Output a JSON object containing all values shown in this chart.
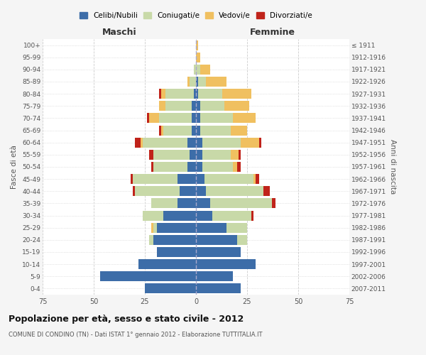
{
  "age_groups": [
    "0-4",
    "5-9",
    "10-14",
    "15-19",
    "20-24",
    "25-29",
    "30-34",
    "35-39",
    "40-44",
    "45-49",
    "50-54",
    "55-59",
    "60-64",
    "65-69",
    "70-74",
    "75-79",
    "80-84",
    "85-89",
    "90-94",
    "95-99",
    "100+"
  ],
  "birth_years": [
    "2007-2011",
    "2002-2006",
    "1997-2001",
    "1992-1996",
    "1987-1991",
    "1982-1986",
    "1977-1981",
    "1972-1976",
    "1967-1971",
    "1962-1966",
    "1957-1961",
    "1952-1956",
    "1947-1951",
    "1942-1946",
    "1937-1941",
    "1932-1936",
    "1927-1931",
    "1922-1926",
    "1917-1921",
    "1912-1916",
    "≤ 1911"
  ],
  "maschi": {
    "celibe": [
      25,
      47,
      28,
      19,
      21,
      19,
      16,
      9,
      8,
      9,
      4,
      3,
      4,
      2,
      2,
      2,
      1,
      0,
      0,
      0,
      0
    ],
    "coniugato": [
      0,
      0,
      0,
      0,
      2,
      2,
      10,
      13,
      22,
      22,
      17,
      18,
      22,
      14,
      16,
      13,
      14,
      3,
      1,
      0,
      0
    ],
    "vedovo": [
      0,
      0,
      0,
      0,
      0,
      1,
      0,
      0,
      0,
      0,
      0,
      0,
      1,
      1,
      5,
      3,
      2,
      1,
      0,
      0,
      0
    ],
    "divorziato": [
      0,
      0,
      0,
      0,
      0,
      0,
      0,
      0,
      1,
      1,
      1,
      2,
      3,
      1,
      1,
      0,
      1,
      0,
      0,
      0,
      0
    ]
  },
  "femmine": {
    "nubile": [
      22,
      18,
      29,
      22,
      20,
      15,
      8,
      7,
      5,
      4,
      3,
      3,
      3,
      2,
      2,
      2,
      1,
      1,
      0,
      0,
      0
    ],
    "coniugata": [
      0,
      0,
      0,
      0,
      5,
      10,
      19,
      30,
      28,
      24,
      15,
      14,
      19,
      15,
      16,
      12,
      12,
      4,
      2,
      0,
      0
    ],
    "vedova": [
      0,
      0,
      0,
      0,
      0,
      0,
      0,
      0,
      0,
      1,
      2,
      4,
      9,
      8,
      11,
      12,
      14,
      10,
      5,
      2,
      1
    ],
    "divorziata": [
      0,
      0,
      0,
      0,
      0,
      0,
      1,
      2,
      3,
      2,
      2,
      1,
      1,
      0,
      0,
      0,
      0,
      0,
      0,
      0,
      0
    ]
  },
  "colors": {
    "celibe": "#3d6da8",
    "coniugato": "#c8d9a8",
    "vedovo": "#f0c060",
    "divorziato": "#c0231a"
  },
  "title": "Popolazione per età, sesso e stato civile - 2012",
  "subtitle": "COMUNE DI CONDINO (TN) - Dati ISTAT 1° gennaio 2012 - Elaborazione TUTTITALIA.IT",
  "xlabel_left": "Maschi",
  "xlabel_right": "Femmine",
  "ylabel_left": "Fasce di età",
  "ylabel_right": "Anni di nascita",
  "xlim": 75,
  "bg_color": "#f5f5f5",
  "plot_bg": "#ffffff",
  "grid_color": "#cccccc",
  "legend_labels": [
    "Celibi/Nubili",
    "Coniugati/e",
    "Vedovi/e",
    "Divorziati/e"
  ]
}
